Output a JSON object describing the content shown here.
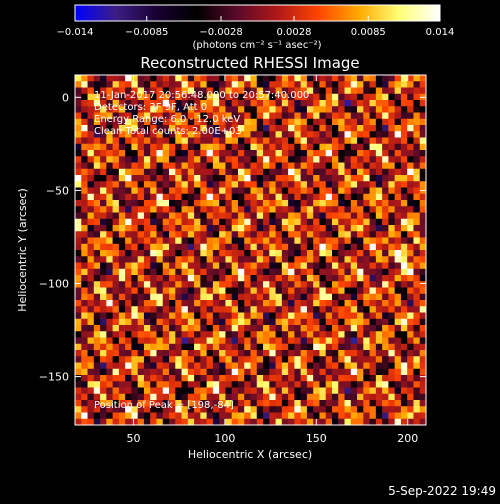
{
  "chart_data": {
    "type": "heatmap",
    "title": "Reconstructed RHESSI Image",
    "xlabel": "Heliocentric X (arcsec)",
    "ylabel": "Heliocentric Y (arcsec)",
    "xlim": [
      18,
      210
    ],
    "ylim": [
      -176,
      12
    ],
    "x_ticks": [
      50,
      100,
      150,
      200
    ],
    "x_tick_labels": [
      "50",
      "100",
      "150",
      "200"
    ],
    "y_ticks": [
      0,
      -50,
      -100,
      -150
    ],
    "y_tick_labels": [
      "0",
      "−50",
      "−100",
      "−150"
    ],
    "info_lines": [
      "11-Jan-2017 20:56:48.000 to 20:57:40.000",
      "Detectors: 3F 9F, Att 0",
      "Energy Range: 6.0 - 12.0 keV",
      "Clean    Total counts: 2.00E+03"
    ],
    "peak_label": "Position of Peak = [198,-84]",
    "peak_position": [
      198,
      -84
    ],
    "colorbar": {
      "min": -0.014,
      "max": 0.014,
      "tick_values": [
        -0.014,
        -0.0085,
        -0.0028,
        0.0028,
        0.0085,
        0.014
      ],
      "tick_labels": [
        "−0.014",
        "−0.0085",
        "−0.0028",
        "0.0028",
        "0.0085",
        "0.014"
      ],
      "units_label": "(photons cm⁻² s⁻¹ asec⁻²)",
      "colors": [
        "#0000ff",
        "#3b1e86",
        "#1a0033",
        "#000000",
        "#5a0a2a",
        "#b01818",
        "#ff4400",
        "#ffaa00",
        "#ffff77",
        "#ffffff"
      ]
    },
    "grid": false
  },
  "footer": {
    "date": "5-Sep-2022 19:49"
  }
}
